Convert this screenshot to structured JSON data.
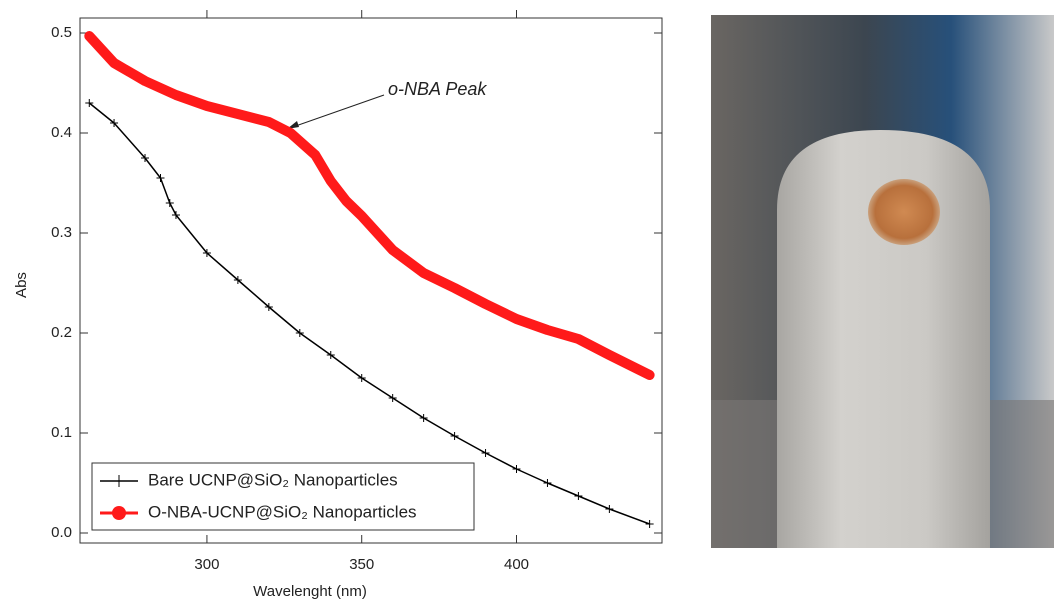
{
  "chart_data": {
    "type": "line",
    "x_label": "Wavelenght (nm)",
    "y_label": "Abs",
    "annotation": "o-NBA Peak",
    "xlim": [
      259,
      447
    ],
    "ylim": [
      -0.01,
      0.515
    ],
    "xticks": [
      300,
      350,
      400
    ],
    "yticks": [
      {
        "value": 0,
        "label": "0.0"
      },
      0.1,
      0.2,
      0.3,
      0.4,
      0.5
    ],
    "series": [
      {
        "name": "Bare UCNP@SiO₂ Nanoparticles",
        "color": "#000000",
        "x": [
          262,
          270,
          280,
          285,
          288,
          290,
          300,
          310,
          320,
          330,
          340,
          350,
          360,
          370,
          380,
          390,
          400,
          410,
          420,
          430,
          443
        ],
        "values": [
          0.43,
          0.41,
          0.375,
          0.355,
          0.33,
          0.318,
          0.28,
          0.253,
          0.226,
          0.2,
          0.178,
          0.155,
          0.135,
          0.115,
          0.097,
          0.08,
          0.064,
          0.05,
          0.037,
          0.024,
          0.009
        ]
      },
      {
        "name": "O-NBA-UCNP@SiO₂ Nanoparticles",
        "color": "#ff1a1a",
        "x": [
          262,
          270,
          280,
          290,
          300,
          310,
          320,
          327,
          335,
          340,
          345,
          350,
          360,
          370,
          380,
          390,
          400,
          410,
          420,
          430,
          443
        ],
        "values": [
          0.497,
          0.47,
          0.452,
          0.438,
          0.427,
          0.419,
          0.411,
          0.4,
          0.378,
          0.352,
          0.332,
          0.317,
          0.283,
          0.26,
          0.245,
          0.229,
          0.214,
          0.203,
          0.194,
          0.178,
          0.158
        ]
      }
    ]
  }
}
